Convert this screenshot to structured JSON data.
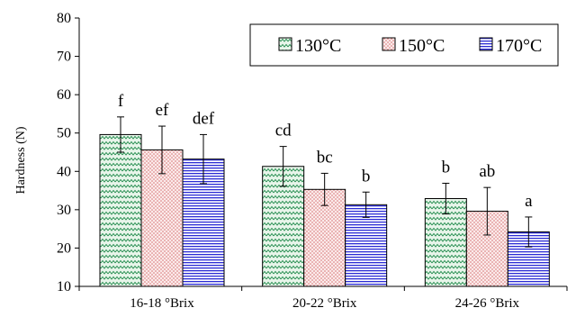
{
  "chart_data": {
    "type": "bar",
    "title": "",
    "xlabel": "",
    "ylabel": "Hardness (N)",
    "ylim": [
      10,
      80
    ],
    "yticks": [
      "10",
      "20",
      "30",
      "40",
      "50",
      "60",
      "70",
      "80"
    ],
    "categories": [
      "16-18 °Brix",
      "20-22 °Brix",
      "24-26 °Brix"
    ],
    "legend_position": "top-right",
    "grid": false,
    "series": [
      {
        "name": "130°C",
        "pattern": "zigzag",
        "color": "#1e8a4a",
        "fill_bg": "#e8f5ea",
        "values": [
          49.6,
          41.3,
          32.9
        ],
        "errors": [
          4.6,
          5.2,
          4.0
        ],
        "labels": [
          "f",
          "cd",
          "b"
        ]
      },
      {
        "name": "150°C",
        "pattern": "dots",
        "color": "#d46a6a",
        "fill_bg": "#fbeaea",
        "values": [
          45.6,
          35.3,
          29.6
        ],
        "errors": [
          6.2,
          4.2,
          6.2
        ],
        "labels": [
          "ef",
          "bc",
          "ab"
        ]
      },
      {
        "name": "170°C",
        "pattern": "stripes",
        "color": "#2b2bd4",
        "fill_bg": "#ffffff",
        "values": [
          43.2,
          31.3,
          24.2
        ],
        "errors": [
          6.4,
          3.3,
          3.9
        ],
        "labels": [
          "def",
          "b",
          "a"
        ]
      }
    ]
  }
}
